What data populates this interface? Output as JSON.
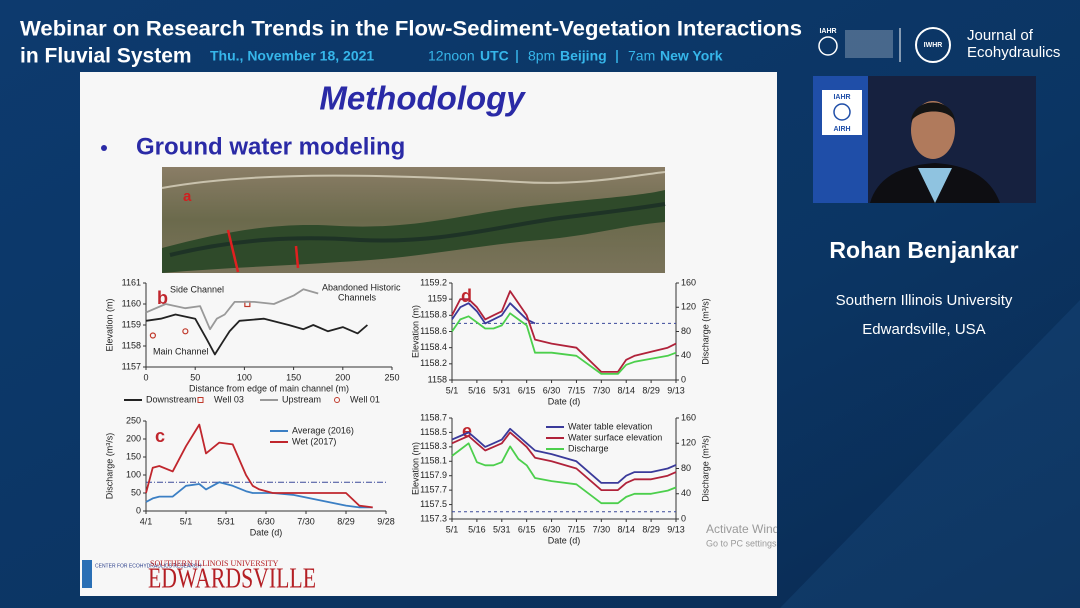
{
  "header": {
    "title_line1": "Webinar on Research Trends in the Flow-Sediment-Vegetation Interactions",
    "title_line2": "in Fluvial System",
    "date": "Thu., November 18, 2021",
    "time1": "12noon",
    "zone1": "UTC",
    "time2": "8pm",
    "zone2": "Beijing",
    "time3": "7am",
    "zone3": "New York",
    "logo1": "IAHR",
    "logo2": "IWHR",
    "journal_line1": "Journal of",
    "journal_line2": "Ecohydraulics"
  },
  "slide": {
    "title": "Methodology",
    "bullet": "Ground water modeling",
    "photo_label": "a",
    "center_logo": "CENTER FOR ECOHYDRAULICS RESEARCH",
    "university_line1": "SOUTHERN ILLINOIS UNIVERSITY",
    "university_line2": "EDWARDSVILLE"
  },
  "video": {
    "logo_top": "IAHR",
    "logo_bottom": "AIRH"
  },
  "speaker": {
    "name": "Rohan Benjankar",
    "affiliation_line1": "Southern Illinois University",
    "affiliation_line2": "Edwardsville, USA"
  },
  "overlay": {
    "line1": "Activate Windows",
    "line2": "Go to PC settings to activate Windows."
  },
  "chart_data": [
    {
      "type": "line",
      "panel": "b",
      "xlabel": "Distance from edge of main channel (m)",
      "ylabel": "Elevation (m)",
      "xlim": [
        0,
        250
      ],
      "xticks": [
        0,
        50,
        100,
        150,
        200,
        250
      ],
      "ylim": [
        1157,
        1161
      ],
      "yticks": [
        1157,
        1158,
        1159,
        1160,
        1161
      ],
      "legend": "bottom",
      "annotations": [
        "Side Channel",
        "Abandoned Historic",
        "Channels",
        "Main Channel"
      ],
      "series": [
        {
          "name": "Downstream",
          "color": "#222222",
          "x": [
            0,
            15,
            30,
            50,
            62,
            70,
            78,
            85,
            95,
            120,
            145,
            160,
            170,
            185,
            200,
            215,
            225
          ],
          "values": [
            1159.2,
            1159.3,
            1159.5,
            1159.3,
            1158.3,
            1157.6,
            1158.2,
            1158.7,
            1159.2,
            1159.3,
            1159.0,
            1158.8,
            1159.0,
            1158.7,
            1158.9,
            1158.6,
            1159.0
          ]
        },
        {
          "name": "Well 03",
          "color": "#c0392b",
          "marker": "square",
          "x": [
            103
          ],
          "values": [
            1160
          ]
        },
        {
          "name": "Upstream",
          "color": "#999999",
          "x": [
            0,
            20,
            40,
            55,
            65,
            72,
            80,
            90,
            110,
            130,
            150,
            160,
            175
          ],
          "values": [
            1159.6,
            1160.0,
            1159.8,
            1159.9,
            1158.8,
            1159.3,
            1159.5,
            1160.1,
            1160.1,
            1160.0,
            1160.4,
            1160.7,
            1160.5
          ]
        },
        {
          "name": "Well 01",
          "color": "#c0392b",
          "marker": "circle",
          "x": [
            7,
            40
          ],
          "values": [
            1158.5,
            1158.7
          ]
        }
      ]
    },
    {
      "type": "line",
      "panel": "c",
      "xlabel": "Date (d)",
      "ylabel": "Discharge (m³/s)",
      "xlim": [
        0,
        180
      ],
      "xticks": [
        {
          "value": 0,
          "label": "4/1"
        },
        {
          "value": 30,
          "label": "5/1"
        },
        {
          "value": 60,
          "label": "5/31"
        },
        {
          "value": 90,
          "label": "6/30"
        },
        {
          "value": 120,
          "label": "7/30"
        },
        {
          "value": 150,
          "label": "8/29"
        },
        {
          "value": 180,
          "label": "9/28"
        }
      ],
      "ylim": [
        0,
        250
      ],
      "yticks": [
        0,
        50,
        100,
        150,
        200,
        250
      ],
      "hlines": [
        80
      ],
      "legend": "upper right",
      "x": [
        0,
        5,
        10,
        20,
        30,
        40,
        45,
        55,
        65,
        75,
        80,
        85,
        95,
        110,
        150,
        160,
        170
      ],
      "series": [
        {
          "name": "Average (2016)",
          "color": "#3b7fc4",
          "values": [
            25,
            35,
            40,
            40,
            70,
            75,
            60,
            80,
            70,
            55,
            50,
            50,
            50,
            45,
            15,
            10,
            10
          ]
        },
        {
          "name": "Wet (2017)",
          "color": "#c0262d",
          "values": [
            50,
            120,
            125,
            110,
            180,
            240,
            160,
            190,
            185,
            100,
            70,
            60,
            50,
            50,
            50,
            15,
            10
          ]
        }
      ]
    },
    {
      "type": "line",
      "panel": "d",
      "xlabel": "Date (d)",
      "ylabel": "Elevation (m)",
      "y2label": "Discharge (m³/s)",
      "xlim": [
        0,
        135
      ],
      "xticks": [
        {
          "value": 0,
          "label": "5/1"
        },
        {
          "value": 15,
          "label": "5/16"
        },
        {
          "value": 30,
          "label": "5/31"
        },
        {
          "value": 45,
          "label": "6/15"
        },
        {
          "value": 60,
          "label": "6/30"
        },
        {
          "value": 75,
          "label": "7/15"
        },
        {
          "value": 90,
          "label": "7/30"
        },
        {
          "value": 105,
          "label": "8/14"
        },
        {
          "value": 120,
          "label": "8/29"
        },
        {
          "value": 135,
          "label": "9/13"
        }
      ],
      "ylim": [
        1158,
        1159.2
      ],
      "yticks": [
        1158,
        1158.2,
        1158.4,
        1158.6,
        1158.8,
        1159,
        1159.2
      ],
      "y2lim": [
        0,
        160
      ],
      "y2ticks": [
        0,
        40,
        80,
        120,
        160
      ],
      "hlines": [
        1158.7
      ],
      "x": [
        0,
        5,
        10,
        15,
        20,
        25,
        30,
        35,
        40,
        45,
        50,
        60,
        75,
        90,
        100,
        105,
        110,
        120,
        130,
        135
      ],
      "series": [
        {
          "color": "#3a3a9a",
          "values": [
            1158.75,
            1158.9,
            1158.95,
            1158.85,
            1158.7,
            1158.75,
            1158.8,
            1158.95,
            1158.85,
            1158.75,
            1158.7,
            null,
            null,
            null,
            null,
            null,
            null,
            null,
            null,
            null
          ]
        },
        {
          "color": "#b0223a",
          "values": [
            1158.8,
            1159.0,
            1159.0,
            1158.9,
            1158.75,
            1158.8,
            1158.85,
            1159.1,
            1158.95,
            1158.8,
            1158.5,
            1158.45,
            1158.4,
            1158.1,
            1158.1,
            1158.25,
            1158.3,
            1158.35,
            1158.4,
            1158.45
          ]
        },
        {
          "color": "#4ccf4c",
          "axis": "y2",
          "values": [
            80,
            100,
            105,
            95,
            85,
            85,
            90,
            110,
            100,
            90,
            45,
            45,
            40,
            10,
            10,
            25,
            30,
            35,
            40,
            45
          ]
        }
      ]
    },
    {
      "type": "line",
      "panel": "e",
      "xlabel": "Date (d)",
      "ylabel": "Elevation (m)",
      "y2label": "Discharge (m³/s)",
      "xlim": [
        0,
        135
      ],
      "xticks": [
        {
          "value": 0,
          "label": "5/1"
        },
        {
          "value": 15,
          "label": "5/16"
        },
        {
          "value": 30,
          "label": "5/31"
        },
        {
          "value": 45,
          "label": "6/15"
        },
        {
          "value": 60,
          "label": "6/30"
        },
        {
          "value": 75,
          "label": "7/15"
        },
        {
          "value": 90,
          "label": "7/30"
        },
        {
          "value": 105,
          "label": "8/14"
        },
        {
          "value": 120,
          "label": "8/29"
        },
        {
          "value": 135,
          "label": "9/13"
        }
      ],
      "ylim": [
        1157.3,
        1158.7
      ],
      "yticks": [
        1157.3,
        1157.5,
        1157.7,
        1157.9,
        1158.1,
        1158.3,
        1158.5,
        1158.7
      ],
      "y2lim": [
        0,
        160
      ],
      "y2ticks": [
        0,
        40,
        80,
        120,
        160
      ],
      "hlines": [
        1157.4
      ],
      "legend": "upper right",
      "x": [
        0,
        5,
        10,
        15,
        20,
        25,
        30,
        35,
        40,
        45,
        50,
        60,
        75,
        90,
        100,
        105,
        110,
        120,
        130,
        135
      ],
      "series": [
        {
          "name": "Water table elevation",
          "color": "#3a3a9a",
          "values": [
            1158.4,
            1158.45,
            1158.5,
            1158.4,
            1158.3,
            1158.35,
            1158.4,
            1158.55,
            1158.45,
            1158.35,
            1158.25,
            1158.2,
            1158.1,
            1157.8,
            1157.8,
            1157.9,
            1157.95,
            1157.95,
            1158.0,
            1158.05
          ]
        },
        {
          "name": "Water surface elevation",
          "color": "#b0223a",
          "values": [
            1158.35,
            1158.4,
            1158.45,
            1158.35,
            1158.25,
            1158.3,
            1158.35,
            1158.5,
            1158.4,
            1158.3,
            1158.15,
            1158.1,
            1158.0,
            1157.7,
            1157.7,
            1157.8,
            1157.85,
            1157.85,
            1157.9,
            1157.95
          ]
        },
        {
          "name": "Discharge",
          "color": "#4ccf4c",
          "axis": "y2",
          "values": [
            100,
            110,
            120,
            90,
            85,
            85,
            90,
            115,
            95,
            85,
            65,
            60,
            55,
            25,
            25,
            35,
            40,
            40,
            45,
            50
          ]
        }
      ]
    }
  ]
}
